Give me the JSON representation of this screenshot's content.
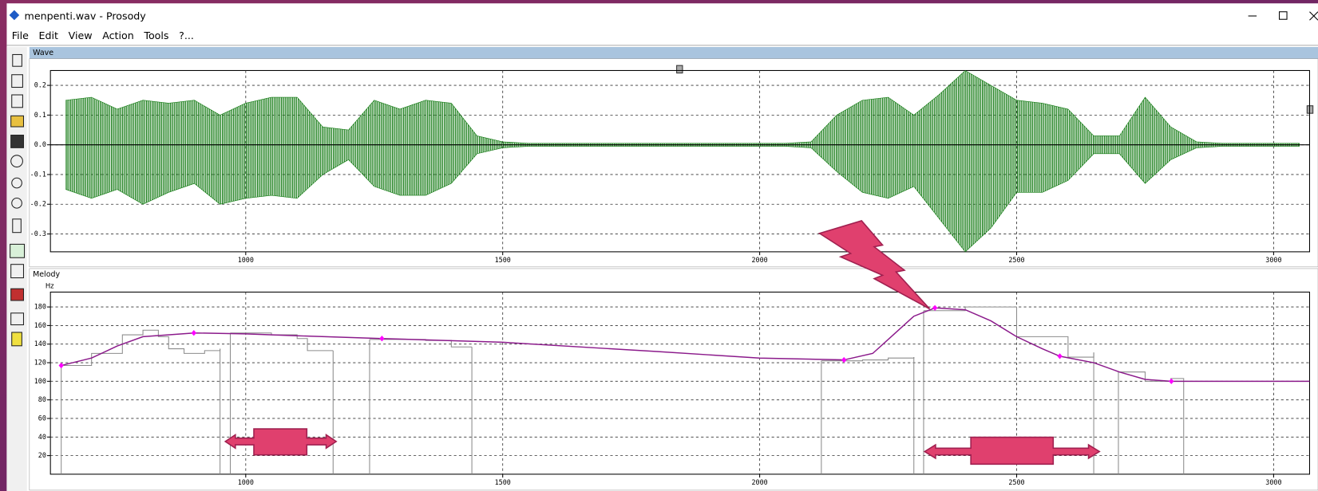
{
  "window": {
    "title": "menpenti.wav - Prosody",
    "menu": [
      "File",
      "Edit",
      "View",
      "Action",
      "Tools",
      "?..."
    ]
  },
  "chart_data": [
    {
      "type": "wave",
      "title": "Wave",
      "x": [
        650,
        700,
        750,
        800,
        850,
        900,
        950,
        1000,
        1050,
        1100,
        1150,
        1200,
        1250,
        1300,
        1350,
        1400,
        1450,
        1500,
        1550,
        1600,
        1650,
        1700,
        1750,
        1800,
        1850,
        1900,
        1950,
        2000,
        2050,
        2100,
        2150,
        2200,
        2250,
        2300,
        2350,
        2400,
        2450,
        2500,
        2550,
        2600,
        2650,
        2700,
        2750,
        2800,
        2850,
        2900,
        2950,
        3000,
        3050
      ],
      "series": [
        {
          "color": "#127a12",
          "values": [
            0.15,
            0.16,
            0.12,
            0.15,
            0.14,
            0.15,
            0.1,
            0.14,
            0.16,
            0.16,
            0.06,
            0.05,
            0.15,
            0.12,
            0.15,
            0.14,
            0.03,
            0.01,
            0.005,
            0.005,
            0.005,
            0.005,
            0.005,
            0.005,
            0.005,
            0.005,
            0.005,
            0.005,
            0.005,
            0.01,
            0.1,
            0.15,
            0.16,
            0.1,
            0.17,
            0.25,
            0.2,
            0.15,
            0.14,
            0.12,
            0.03,
            0.03,
            0.16,
            0.06,
            0.01,
            0.005,
            0.005,
            0.005,
            0.005
          ]
        },
        {
          "color": "#127a12",
          "values": [
            -0.15,
            -0.18,
            -0.15,
            -0.2,
            -0.16,
            -0.13,
            -0.2,
            -0.18,
            -0.17,
            -0.18,
            -0.1,
            -0.05,
            -0.14,
            -0.17,
            -0.17,
            -0.13,
            -0.03,
            -0.01,
            -0.005,
            -0.005,
            -0.005,
            -0.005,
            -0.005,
            -0.005,
            -0.005,
            -0.005,
            -0.005,
            -0.005,
            -0.005,
            -0.01,
            -0.09,
            -0.16,
            -0.18,
            -0.14,
            -0.25,
            -0.36,
            -0.28,
            -0.16,
            -0.16,
            -0.12,
            -0.03,
            -0.03,
            -0.13,
            -0.05,
            -0.01,
            -0.005,
            -0.005,
            -0.005,
            -0.005
          ]
        }
      ],
      "xlim": [
        620,
        3070
      ],
      "xticks": [
        1000,
        1500,
        2000,
        2500,
        3000
      ],
      "ylim": [
        -0.36,
        0.25
      ],
      "yticks": [
        0.2,
        0.1,
        {
          "value": 0,
          "label": "0.0"
        },
        -0.1,
        -0.2,
        -0.3
      ],
      "grid": true
    },
    {
      "type": "line",
      "title": "Melody",
      "y_label": "Hz",
      "series": [
        {
          "color": "#8b1a8b",
          "x": [
            641,
            700,
            750,
            800,
            900,
            1000,
            1100,
            1265,
            1500,
            1800,
            2000,
            2164,
            2220,
            2260,
            2300,
            2341,
            2400,
            2450,
            2500,
            2550,
            2584,
            2650,
            2700,
            2750,
            2801,
            3070
          ],
          "values": [
            117,
            125,
            138,
            148,
            152,
            151,
            149,
            146,
            142,
            132,
            125,
            123,
            130,
            150,
            170,
            179,
            177,
            165,
            148,
            135,
            127,
            120,
            110,
            102,
            100,
            100
          ]
        },
        {
          "color": "#ff00ff",
          "marker": "diamond",
          "x": [
            641,
            899,
            1265,
            2164,
            2341,
            2584,
            2801
          ],
          "values": [
            117,
            152,
            146,
            123,
            179,
            127,
            100
          ]
        },
        {
          "color": "#8c8c8c",
          "x": [
            641,
            700,
            760,
            800,
            830,
            850,
            880,
            920,
            950,
            null,
            970,
            1050,
            1100,
            1120,
            1170,
            null,
            1241,
            1350,
            1400,
            1440,
            null,
            2120,
            2200,
            2250,
            2300,
            null,
            2319,
            2400,
            2500,
            2600,
            2650,
            null,
            2698,
            2750,
            2800,
            2825
          ],
          "values": [
            117,
            130,
            150,
            155,
            148,
            135,
            130,
            133,
            135,
            null,
            152,
            150,
            146,
            133,
            133,
            null,
            145,
            144,
            137,
            137,
            null,
            122,
            123,
            125,
            126,
            null,
            176,
            180,
            148,
            126,
            131,
            null,
            110,
            100,
            103,
            100
          ]
        }
      ],
      "xlim": [
        620,
        3070
      ],
      "xticks": [
        1000,
        1500,
        2000,
        2500,
        3000
      ],
      "ylim": [
        0,
        196
      ],
      "yticks": [
        20,
        40,
        60,
        80,
        100,
        120,
        140,
        160,
        180
      ],
      "grid": true
    }
  ]
}
